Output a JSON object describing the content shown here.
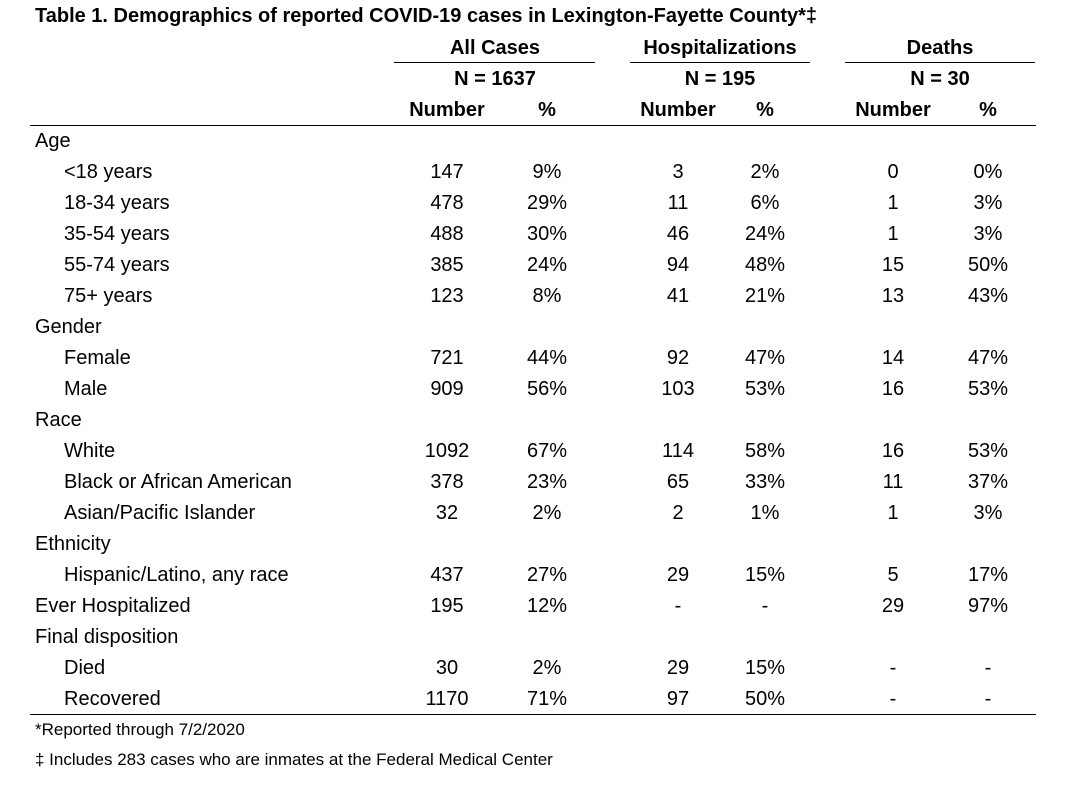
{
  "title": "Table 1. Demographics of reported COVID-19 cases in Lexington-Fayette County*‡",
  "groups": [
    {
      "label": "All Cases",
      "n": "N = 1637"
    },
    {
      "label": "Hospitalizations",
      "n": "N = 195"
    },
    {
      "label": "Deaths",
      "n": "N = 30"
    }
  ],
  "subheaders": {
    "number": "Number",
    "percent": "%"
  },
  "rows": [
    {
      "label": "Age",
      "category": true
    },
    {
      "label": "<18 years",
      "values": [
        "147",
        "9%",
        "3",
        "2%",
        "0",
        "0%"
      ]
    },
    {
      "label": "18-34 years",
      "values": [
        "478",
        "29%",
        "11",
        "6%",
        "1",
        "3%"
      ]
    },
    {
      "label": "35-54 years",
      "values": [
        "488",
        "30%",
        "46",
        "24%",
        "1",
        "3%"
      ]
    },
    {
      "label": "55-74 years",
      "values": [
        "385",
        "24%",
        "94",
        "48%",
        "15",
        "50%"
      ]
    },
    {
      "label": "75+ years",
      "values": [
        "123",
        "8%",
        "41",
        "21%",
        "13",
        "43%"
      ]
    },
    {
      "label": "Gender",
      "category": true
    },
    {
      "label": "Female",
      "values": [
        "721",
        "44%",
        "92",
        "47%",
        "14",
        "47%"
      ]
    },
    {
      "label": "Male",
      "values": [
        "909",
        "56%",
        "103",
        "53%",
        "16",
        "53%"
      ]
    },
    {
      "label": "Race",
      "category": true
    },
    {
      "label": "White",
      "values": [
        "1092",
        "67%",
        "114",
        "58%",
        "16",
        "53%"
      ]
    },
    {
      "label": "Black or African American",
      "values": [
        "378",
        "23%",
        "65",
        "33%",
        "11",
        "37%"
      ]
    },
    {
      "label": "Asian/Pacific Islander",
      "values": [
        "32",
        "2%",
        "2",
        "1%",
        "1",
        "3%"
      ]
    },
    {
      "label": "Ethnicity",
      "category": true
    },
    {
      "label": "Hispanic/Latino, any race",
      "values": [
        "437",
        "27%",
        "29",
        "15%",
        "5",
        "17%"
      ]
    },
    {
      "label": "Ever Hospitalized",
      "values": [
        "195",
        "12%",
        "-",
        "-",
        "29",
        "97%"
      ],
      "topLevel": true
    },
    {
      "label": "Final disposition",
      "category": true
    },
    {
      "label": "Died",
      "values": [
        "30",
        "2%",
        "29",
        "15%",
        "-",
        "-"
      ]
    },
    {
      "label": "Recovered",
      "values": [
        "1170",
        "71%",
        "97",
        "50%",
        "-",
        "-"
      ]
    }
  ],
  "footnotes": [
    "*Reported through 7/2/2020",
    "‡ Includes 283 cases who are inmates at the Federal Medical Center"
  ]
}
